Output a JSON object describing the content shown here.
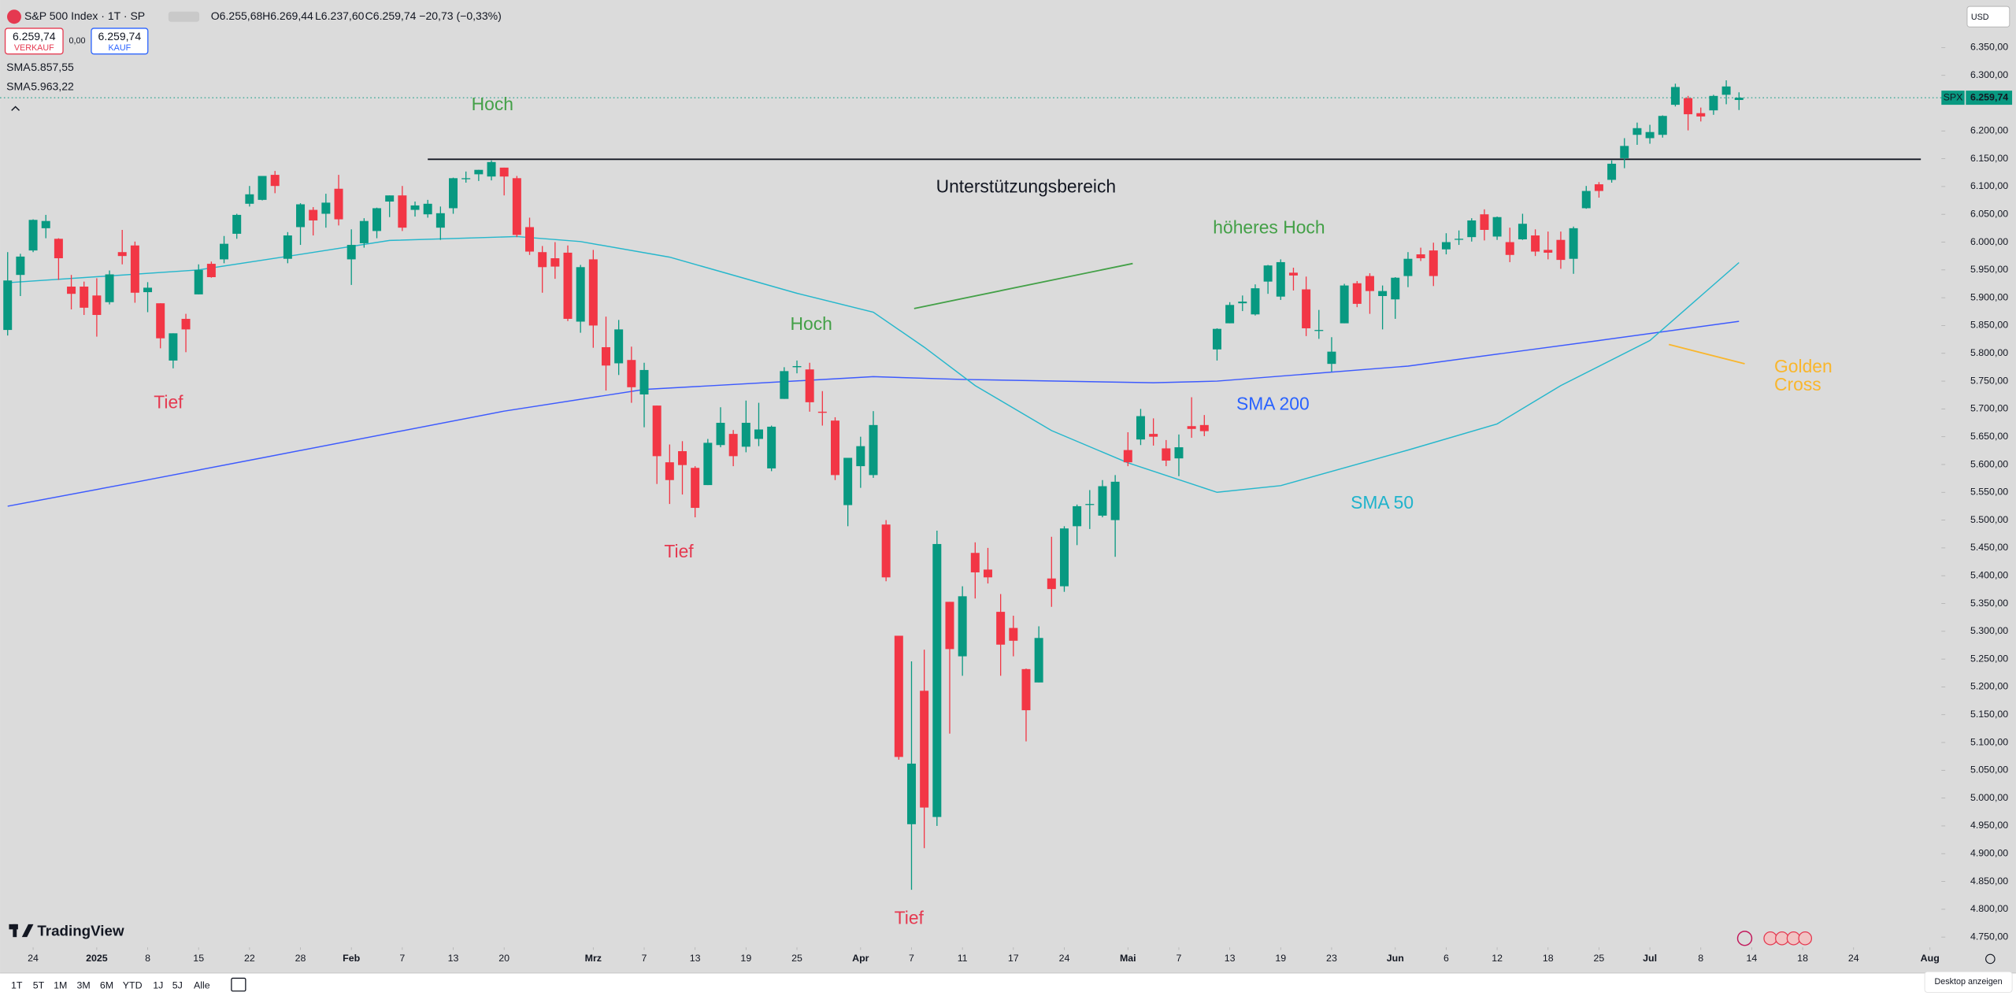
{
  "chart_data": {
    "type": "candlestick",
    "title": "S&P 500 Index · 1T · SP",
    "symbol": "SPX",
    "currency": "USD",
    "header": {
      "open": "O6.255,68",
      "high": "H6.269,44",
      "low": "L6.237,60",
      "close": "C6.259,74",
      "change": "−20,73 (−0,33%)"
    },
    "sell": {
      "price": "6.259,74",
      "label": "VERKAUF"
    },
    "spread": "0,00",
    "buy": {
      "price": "6.259,74",
      "label": "KAUF"
    },
    "last_label": "6.259,74",
    "up_color": "#089981",
    "down_color": "#f23645",
    "grid": false,
    "ylim": [
      4731.5,
      6435.5
    ],
    "xlim": [
      -0.6,
      151.9
    ],
    "yticks": [
      {
        "value": 6350,
        "label": "6.350,00"
      },
      {
        "value": 6300,
        "label": "6.300,00"
      },
      {
        "value": 6200,
        "label": "6.200,00"
      },
      {
        "value": 6150,
        "label": "6.150,00"
      },
      {
        "value": 6100,
        "label": "6.100,00"
      },
      {
        "value": 6050,
        "label": "6.050,00"
      },
      {
        "value": 6000,
        "label": "6.000,00"
      },
      {
        "value": 5950,
        "label": "5.950,00"
      },
      {
        "value": 5900,
        "label": "5.900,00"
      },
      {
        "value": 5850,
        "label": "5.850,00"
      },
      {
        "value": 5800,
        "label": "5.800,00"
      },
      {
        "value": 5750,
        "label": "5.750,00"
      },
      {
        "value": 5700,
        "label": "5.700,00"
      },
      {
        "value": 5650,
        "label": "5.650,00"
      },
      {
        "value": 5600,
        "label": "5.600,00"
      },
      {
        "value": 5550,
        "label": "5.550,00"
      },
      {
        "value": 5500,
        "label": "5.500,00"
      },
      {
        "value": 5450,
        "label": "5.450,00"
      },
      {
        "value": 5400,
        "label": "5.400,00"
      },
      {
        "value": 5350,
        "label": "5.350,00"
      },
      {
        "value": 5300,
        "label": "5.300,00"
      },
      {
        "value": 5250,
        "label": "5.250,00"
      },
      {
        "value": 5200,
        "label": "5.200,00"
      },
      {
        "value": 5150,
        "label": "5.150,00"
      },
      {
        "value": 5100,
        "label": "5.100,00"
      },
      {
        "value": 5050,
        "label": "5.050,00"
      },
      {
        "value": 5000,
        "label": "5.000,00"
      },
      {
        "value": 4950,
        "label": "4.950,00"
      },
      {
        "value": 4900,
        "label": "4.900,00"
      },
      {
        "value": 4850,
        "label": "4.850,00"
      },
      {
        "value": 4800,
        "label": "4.800,00"
      },
      {
        "value": 4750,
        "label": "4.750,00"
      }
    ],
    "xticks": [
      {
        "value": 2,
        "label": "24"
      },
      {
        "value": 7,
        "label": "2025"
      },
      {
        "value": 11,
        "label": "8"
      },
      {
        "value": 15,
        "label": "15"
      },
      {
        "value": 19,
        "label": "22"
      },
      {
        "value": 23,
        "label": "28"
      },
      {
        "value": 27,
        "label": "Feb"
      },
      {
        "value": 31,
        "label": "7"
      },
      {
        "value": 35,
        "label": "13"
      },
      {
        "value": 39,
        "label": "20"
      },
      {
        "value": 46,
        "label": "Mrz"
      },
      {
        "value": 50,
        "label": "7"
      },
      {
        "value": 54,
        "label": "13"
      },
      {
        "value": 58,
        "label": "19"
      },
      {
        "value": 62,
        "label": "25"
      },
      {
        "value": 67,
        "label": "Apr"
      },
      {
        "value": 71,
        "label": "7"
      },
      {
        "value": 75,
        "label": "11"
      },
      {
        "value": 79,
        "label": "17"
      },
      {
        "value": 83,
        "label": "24"
      },
      {
        "value": 88,
        "label": "Mai"
      },
      {
        "value": 92,
        "label": "7"
      },
      {
        "value": 96,
        "label": "13"
      },
      {
        "value": 100,
        "label": "19"
      },
      {
        "value": 104,
        "label": "23"
      },
      {
        "value": 109,
        "label": "Jun"
      },
      {
        "value": 113,
        "label": "6"
      },
      {
        "value": 117,
        "label": "12"
      },
      {
        "value": 121,
        "label": "18"
      },
      {
        "value": 125,
        "label": "25"
      },
      {
        "value": 129,
        "label": "Jul"
      },
      {
        "value": 133,
        "label": "8"
      },
      {
        "value": 137,
        "label": "14"
      },
      {
        "value": 141,
        "label": "18"
      },
      {
        "value": 145,
        "label": "24"
      },
      {
        "value": 151,
        "label": "Aug"
      }
    ],
    "ohlc": [
      [
        5842,
        5982,
        5832,
        5931
      ],
      [
        5941,
        5979,
        5903,
        5974
      ],
      [
        5985,
        6041,
        5982,
        6040
      ],
      [
        6025,
        6049,
        6007,
        6038
      ],
      [
        6006,
        6007,
        5932,
        5971
      ],
      [
        5920,
        5941,
        5879,
        5907
      ],
      [
        5920,
        5929,
        5869,
        5882
      ],
      [
        5904,
        5935,
        5830,
        5869
      ],
      [
        5892,
        5949,
        5888,
        5942
      ],
      [
        5982,
        6022,
        5960,
        5975
      ],
      [
        5994,
        6001,
        5891,
        5909
      ],
      [
        5910,
        5928,
        5874,
        5918
      ],
      [
        5890,
        5890,
        5809,
        5827
      ],
      [
        5787,
        5836,
        5773,
        5836
      ],
      [
        5862,
        5871,
        5802,
        5843
      ],
      [
        5906,
        5960,
        5906,
        5950
      ],
      [
        5961,
        5965,
        5936,
        5937
      ],
      [
        5969,
        6011,
        5962,
        5997
      ],
      [
        6015,
        6051,
        6006,
        6049
      ],
      [
        6069,
        6101,
        6064,
        6086
      ],
      [
        6076,
        6119,
        6075,
        6119
      ],
      [
        6121,
        6128,
        6088,
        6101
      ],
      [
        5970,
        6018,
        5962,
        6012
      ],
      [
        6027,
        6070,
        5995,
        6068
      ],
      [
        6058,
        6063,
        6012,
        6039
      ],
      [
        6051,
        6087,
        6026,
        6071
      ],
      [
        6096,
        6121,
        6030,
        6041
      ],
      [
        5969,
        6023,
        5923,
        5995
      ],
      [
        5998,
        6043,
        5990,
        6038
      ],
      [
        6020,
        6062,
        6007,
        6061
      ],
      [
        6073,
        6084,
        6045,
        6084
      ],
      [
        6084,
        6101,
        6020,
        6026
      ],
      [
        6058,
        6073,
        6046,
        6066
      ],
      [
        6050,
        6076,
        6044,
        6069
      ],
      [
        6026,
        6064,
        6004,
        6052
      ],
      [
        6061,
        6116,
        6051,
        6115
      ],
      [
        6115,
        6127,
        6107,
        6115
      ],
      [
        6122,
        6130,
        6110,
        6130
      ],
      [
        6118,
        6147,
        6111,
        6144
      ],
      [
        6134,
        6134,
        6084,
        6118
      ],
      [
        6115,
        6119,
        6009,
        6013
      ],
      [
        6027,
        6044,
        5977,
        5983
      ],
      [
        5982,
        5993,
        5909,
        5955
      ],
      [
        5971,
        6000,
        5934,
        5956
      ],
      [
        5981,
        5994,
        5858,
        5862
      ],
      [
        5857,
        5959,
        5837,
        5955
      ],
      [
        5969,
        5986,
        5810,
        5850
      ],
      [
        5811,
        5866,
        5733,
        5778
      ],
      [
        5782,
        5860,
        5761,
        5843
      ],
      [
        5788,
        5812,
        5711,
        5739
      ],
      [
        5726,
        5783,
        5667,
        5770
      ],
      [
        5706,
        5706,
        5565,
        5615
      ],
      [
        5604,
        5636,
        5529,
        5572
      ],
      [
        5624,
        5642,
        5546,
        5599
      ],
      [
        5594,
        5597,
        5505,
        5522
      ],
      [
        5563,
        5646,
        5563,
        5639
      ],
      [
        5635,
        5703,
        5631,
        5675
      ],
      [
        5655,
        5662,
        5597,
        5615
      ],
      [
        5632,
        5715,
        5622,
        5675
      ],
      [
        5646,
        5711,
        5633,
        5663
      ],
      [
        5593,
        5670,
        5588,
        5668
      ],
      [
        5718,
        5775,
        5718,
        5768
      ],
      [
        5775,
        5787,
        5764,
        5777
      ],
      [
        5771,
        5783,
        5695,
        5712
      ],
      [
        5695,
        5732,
        5670,
        5693
      ],
      [
        5679,
        5685,
        5572,
        5581
      ],
      [
        5527,
        5612,
        5489,
        5612
      ],
      [
        5597,
        5650,
        5558,
        5633
      ],
      [
        5581,
        5696,
        5576,
        5671
      ],
      [
        5492,
        5500,
        5390,
        5397
      ],
      [
        5292,
        5292,
        5069,
        5074
      ],
      [
        4953,
        5246,
        4835,
        5062
      ],
      [
        5193,
        5267,
        4910,
        4983
      ],
      [
        4966,
        5481,
        4950,
        5457
      ],
      [
        5353,
        5353,
        5116,
        5268
      ],
      [
        5255,
        5381,
        5220,
        5363
      ],
      [
        5441,
        5460,
        5359,
        5406
      ],
      [
        5411,
        5450,
        5386,
        5397
      ],
      [
        5335,
        5367,
        5220,
        5276
      ],
      [
        5306,
        5328,
        5255,
        5283
      ],
      [
        5232,
        5233,
        5102,
        5158
      ],
      [
        5208,
        5309,
        5208,
        5288
      ],
      [
        5395,
        5470,
        5344,
        5376
      ],
      [
        5381,
        5489,
        5371,
        5485
      ],
      [
        5489,
        5528,
        5455,
        5525
      ],
      [
        5529,
        5554,
        5484,
        5529
      ],
      [
        5508,
        5572,
        5505,
        5561
      ],
      [
        5500,
        5581,
        5434,
        5569
      ],
      [
        5626,
        5658,
        5597,
        5604
      ],
      [
        5645,
        5700,
        5635,
        5687
      ],
      [
        5655,
        5683,
        5634,
        5650
      ],
      [
        5629,
        5644,
        5597,
        5607
      ],
      [
        5611,
        5654,
        5579,
        5631
      ],
      [
        5669,
        5721,
        5648,
        5664
      ],
      [
        5671,
        5689,
        5651,
        5660
      ],
      [
        5807,
        5845,
        5787,
        5844
      ],
      [
        5854,
        5892,
        5854,
        5887
      ],
      [
        5890,
        5904,
        5876,
        5893
      ],
      [
        5870,
        5924,
        5868,
        5917
      ],
      [
        5929,
        5959,
        5907,
        5958
      ],
      [
        5902,
        5969,
        5896,
        5964
      ],
      [
        5945,
        5954,
        5913,
        5940
      ],
      [
        5915,
        5938,
        5831,
        5845
      ],
      [
        5842,
        5878,
        5826,
        5842
      ],
      [
        5781,
        5829,
        5767,
        5803
      ],
      [
        5854,
        5925,
        5854,
        5922
      ],
      [
        5926,
        5930,
        5883,
        5889
      ],
      [
        5939,
        5944,
        5871,
        5912
      ],
      [
        5903,
        5922,
        5843,
        5912
      ],
      [
        5897,
        5937,
        5862,
        5936
      ],
      [
        5939,
        5982,
        5919,
        5970
      ],
      [
        5978,
        5990,
        5966,
        5971
      ],
      [
        5985,
        5999,
        5921,
        5939
      ],
      [
        5987,
        6016,
        5978,
        6000
      ],
      [
        6005,
        6021,
        5995,
        6006
      ],
      [
        6009,
        6043,
        6001,
        6039
      ],
      [
        6050,
        6059,
        6003,
        6022
      ],
      [
        6010,
        6046,
        6004,
        6045
      ],
      [
        6000,
        6026,
        5964,
        5977
      ],
      [
        6005,
        6051,
        6004,
        6033
      ],
      [
        6012,
        6023,
        5975,
        5983
      ],
      [
        5986,
        6019,
        5969,
        5981
      ],
      [
        6004,
        6019,
        5952,
        5968
      ],
      [
        5970,
        6028,
        5943,
        6025
      ],
      [
        6061,
        6101,
        6060,
        6092
      ],
      [
        6104,
        6108,
        6080,
        6092
      ],
      [
        6112,
        6147,
        6107,
        6141
      ],
      [
        6151,
        6187,
        6133,
        6173
      ],
      [
        6193,
        6215,
        6175,
        6205
      ],
      [
        6187,
        6211,
        6177,
        6198
      ],
      [
        6193,
        6228,
        6188,
        6227
      ],
      [
        6247,
        6285,
        6244,
        6279
      ],
      [
        6259,
        6263,
        6201,
        6230
      ],
      [
        6232,
        6242,
        6217,
        6226
      ],
      [
        6237,
        6265,
        6229,
        6263
      ],
      [
        6265,
        6291,
        6248,
        6280
      ],
      [
        6255.68,
        6269.44,
        6237.6,
        6259.74
      ]
    ],
    "series": [
      {
        "name": "SMA",
        "color": "#3d5afe",
        "last_label": "5.857,55",
        "x": [
          0,
          10,
          20,
          39,
          50,
          68,
          75,
          90,
          95,
          110,
          125,
          136
        ],
        "values": [
          5525,
          5568,
          5612,
          5696,
          5735,
          5758,
          5753,
          5747,
          5750,
          5777,
          5823,
          5857.55
        ]
      },
      {
        "name": "SMA",
        "color": "#26b7cc",
        "last_label": "5.963,22",
        "x": [
          0,
          15,
          23,
          30,
          40,
          45,
          52,
          62,
          68,
          72,
          76,
          82,
          88,
          95,
          100,
          110,
          117,
          122,
          129,
          136
        ],
        "values": [
          5927,
          5950,
          5978,
          6003,
          6010,
          6001,
          5973,
          5908,
          5874,
          5811,
          5742,
          5661,
          5603,
          5550,
          5562,
          5626,
          5673,
          5742,
          5823,
          5963.22
        ]
      }
    ],
    "support": {
      "value": 6149,
      "from": 33
    },
    "annotations": {
      "hoch1": "Hoch",
      "tief1": "Tief",
      "support_label": "Unterstützungsbereich",
      "hoch2": "Hoch",
      "higher_high": "höheres Hoch",
      "tief2": "Tief",
      "tief3": "Tief",
      "sma200": "SMA 200",
      "sma50": "SMA 50",
      "golden": [
        "Golden",
        "Cross"
      ]
    },
    "timeframes": [
      "1T",
      "5T",
      "1M",
      "3M",
      "6M",
      "YTD",
      "1J",
      "5J",
      "Alle"
    ],
    "brand": "TradingView",
    "desktop": "Desktop anzeigen"
  }
}
